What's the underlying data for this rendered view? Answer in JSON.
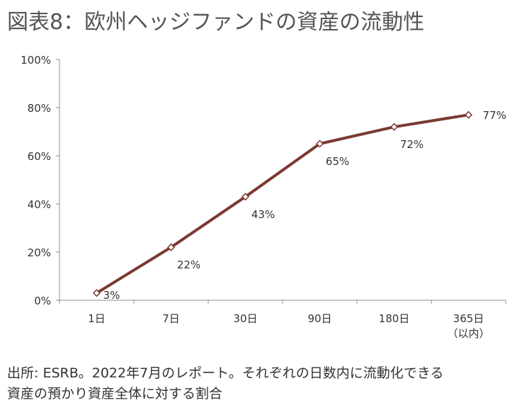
{
  "title": "図表8：欧州ヘッジファンドの資産の流動性",
  "caption": {
    "line1": "出所: ESRB。2022年7月のレポート。それぞれの日数内に流動化できる",
    "line2": "資産の預かり資産全体に対する割合"
  },
  "chart_data": {
    "type": "line",
    "categories": [
      "1日",
      "7日",
      "30日",
      "90日",
      "180日",
      "365日"
    ],
    "category_sublabels": [
      "",
      "",
      "",
      "",
      "",
      "（以内）"
    ],
    "values": [
      3,
      22,
      43,
      65,
      72,
      77
    ],
    "data_labels": [
      "3%",
      "22%",
      "43%",
      "65%",
      "72%",
      "77%"
    ],
    "yticks": [
      "0%",
      "20%",
      "40%",
      "60%",
      "80%",
      "100%"
    ],
    "ylim": [
      0,
      100
    ],
    "grid": false,
    "line_color": "#7b3a32",
    "marker": "diamond-open"
  }
}
